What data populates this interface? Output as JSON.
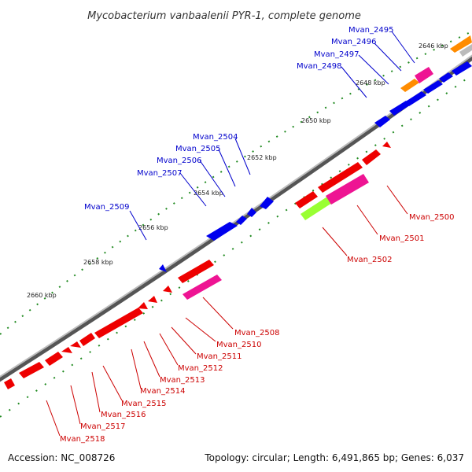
{
  "title": "Mycobacterium vanbaalenii PYR-1, complete genome",
  "footer": {
    "accession": "Accession: NC_008726",
    "topology": "Topology: circular; Length: 6,491,865 bp; Genes: 6,037"
  },
  "scale_ticks": [
    "2646 kbp",
    "2648 kbp",
    "2650 kbp",
    "2652 kbp",
    "2654 kbp",
    "2656 kbp",
    "2658 kbp",
    "2660 kbp"
  ],
  "genes_top": [
    "Mvan_2495",
    "Mvan_2496",
    "Mvan_2497",
    "Mvan_2498",
    "Mvan_2504",
    "Mvan_2505",
    "Mvan_2506",
    "Mvan_2507",
    "Mvan_2509"
  ],
  "genes_bottom": [
    "Mvan_2500",
    "Mvan_2501",
    "Mvan_2502",
    "Mvan_2508",
    "Mvan_2510",
    "Mvan_2511",
    "Mvan_2512",
    "Mvan_2513",
    "Mvan_2514",
    "Mvan_2515",
    "Mvan_2516",
    "Mvan_2517",
    "Mvan_2518"
  ],
  "colors": {
    "forward_strand": "#0000ee",
    "reverse_strand": "#ee0000",
    "highlight_pink": "#ee1493",
    "highlight_orange": "#ff8c00",
    "highlight_green": "#99ff33",
    "backbone": "#888888",
    "tick_dots": "#228b22"
  }
}
